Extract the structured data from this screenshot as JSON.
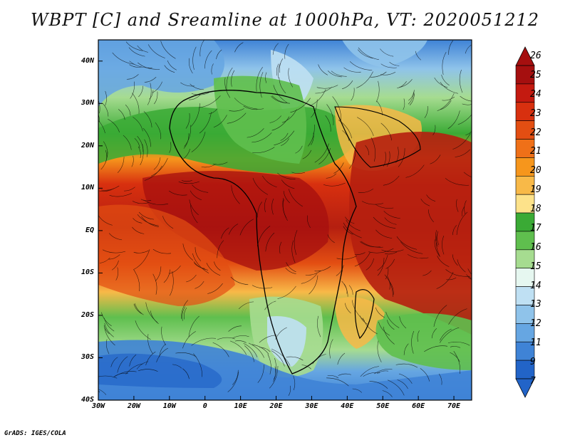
{
  "title": "WBPT [C] and Sreamline at 1000hPa, VT: 2020051212",
  "footer": "GrADS: IGES/COLA",
  "y_axis_labels": [
    "40N",
    "30N",
    "20N",
    "10N",
    "EQ",
    "10S",
    "20S",
    "30S",
    "40S"
  ],
  "x_axis_labels": [
    "30W",
    "20W",
    "10W",
    "0",
    "10E",
    "20E",
    "30E",
    "40E",
    "50E",
    "60E",
    "70E"
  ],
  "colorbar": {
    "labels": [
      "26",
      "25",
      "24",
      "23",
      "22",
      "21",
      "20",
      "19",
      "18",
      "17",
      "16",
      "15",
      "14",
      "13",
      "12",
      "11",
      "9",
      "7"
    ],
    "colors": [
      "#a50f0f",
      "#c41a10",
      "#d8300f",
      "#e34e12",
      "#ef7018",
      "#f6961c",
      "#f8b948",
      "#fde28a",
      "#3aaa35",
      "#5fbf4e",
      "#a6dc90",
      "#e6f7f0",
      "#bfe0f3",
      "#8fc3ea",
      "#66a6e2",
      "#3f83d6",
      "#2264c8"
    ]
  },
  "map": {
    "lon_range": [
      -30,
      75
    ],
    "lat_range": [
      -40,
      45
    ],
    "regions": {
      "sahara": "#3aaa35",
      "tropics": "#b51f10",
      "ocean_warm": "#c8260f",
      "south_cold": "#3f83d6",
      "north_cold": "#4f8fdc"
    }
  }
}
